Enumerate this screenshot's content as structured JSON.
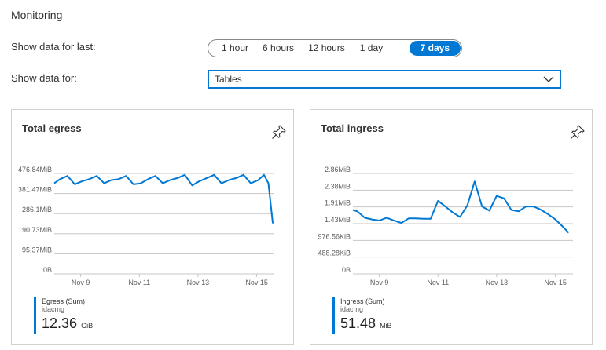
{
  "section": {
    "title": "Monitoring"
  },
  "controls": {
    "range_label": "Show data for last:",
    "time_options": [
      "1 hour",
      "6 hours",
      "12 hours",
      "1 day",
      "7 days"
    ],
    "selected_time": "7 days",
    "for_label": "Show data for:",
    "for_value": "Tables"
  },
  "cards": {
    "egress": {
      "title": "Total egress",
      "legend_name": "Egress (Sum)",
      "legend_sub": "idacmg",
      "total_value": "12.36",
      "total_unit": "GiB"
    },
    "ingress": {
      "title": "Total ingress",
      "legend_name": "Ingress (Sum)",
      "legend_sub": "idacmg",
      "total_value": "51.48",
      "total_unit": "MiB"
    }
  },
  "colors": {
    "accent": "#0078d4",
    "grid": "#c8c6c4",
    "border": "#d2d0ce"
  },
  "icons": {
    "pin": "pin-icon",
    "chevron": "chevron-down-icon"
  },
  "chart_data": [
    {
      "type": "line",
      "title": "Total egress",
      "yticks": [
        "476.84MiB",
        "381.47MiB",
        "286.1MiB",
        "190.73MiB",
        "95.37MiB",
        "0B"
      ],
      "ylim": [
        0,
        476.84
      ],
      "xticks": [
        "Nov 9",
        "Nov 11",
        "Nov 13",
        "Nov 15"
      ],
      "xtick_pos": [
        1.5,
        3.5,
        5.5,
        7.5
      ],
      "xlim": [
        0.6,
        8.1
      ],
      "series": [
        {
          "name": "Egress (Sum)",
          "x": [
            0.6,
            0.8,
            1.05,
            1.3,
            1.55,
            1.8,
            2.05,
            2.3,
            2.55,
            2.8,
            3.05,
            3.3,
            3.55,
            3.8,
            4.05,
            4.3,
            4.55,
            4.8,
            5.05,
            5.3,
            5.55,
            5.8,
            6.05,
            6.3,
            6.55,
            6.8,
            7.05,
            7.3,
            7.55,
            7.75,
            7.9,
            8.05
          ],
          "y": [
            430,
            450,
            465,
            425,
            440,
            450,
            465,
            430,
            445,
            450,
            465,
            425,
            430,
            450,
            465,
            430,
            445,
            455,
            470,
            420,
            440,
            455,
            470,
            430,
            445,
            455,
            470,
            430,
            445,
            470,
            430,
            240
          ]
        }
      ]
    },
    {
      "type": "line",
      "title": "Total ingress",
      "yticks": [
        "2.86MiB",
        "2.38MiB",
        "1.91MiB",
        "1.43MiB",
        "976.56KiB",
        "488.28KiB",
        "0B"
      ],
      "ylim": [
        0,
        2.86
      ],
      "xticks": [
        "Nov 9",
        "Nov 11",
        "Nov 13",
        "Nov 15"
      ],
      "xtick_pos": [
        1.5,
        3.5,
        5.5,
        7.5
      ],
      "xlim": [
        0.6,
        8.1
      ],
      "series": [
        {
          "name": "Ingress (Sum)",
          "x": [
            0.6,
            0.75,
            1.0,
            1.25,
            1.5,
            1.75,
            2.0,
            2.25,
            2.5,
            2.75,
            3.0,
            3.25,
            3.5,
            3.75,
            4.0,
            4.25,
            4.5,
            4.75,
            5.0,
            5.25,
            5.5,
            5.75,
            6.0,
            6.25,
            6.5,
            6.75,
            7.0,
            7.25,
            7.5,
            7.75,
            7.95
          ],
          "y": [
            1.82,
            1.78,
            1.6,
            1.55,
            1.52,
            1.6,
            1.52,
            1.45,
            1.58,
            1.58,
            1.57,
            1.57,
            2.08,
            1.92,
            1.75,
            1.62,
            1.95,
            2.63,
            1.92,
            1.8,
            2.22,
            2.15,
            1.82,
            1.78,
            1.92,
            1.92,
            1.83,
            1.7,
            1.55,
            1.35,
            1.17
          ]
        }
      ]
    }
  ]
}
